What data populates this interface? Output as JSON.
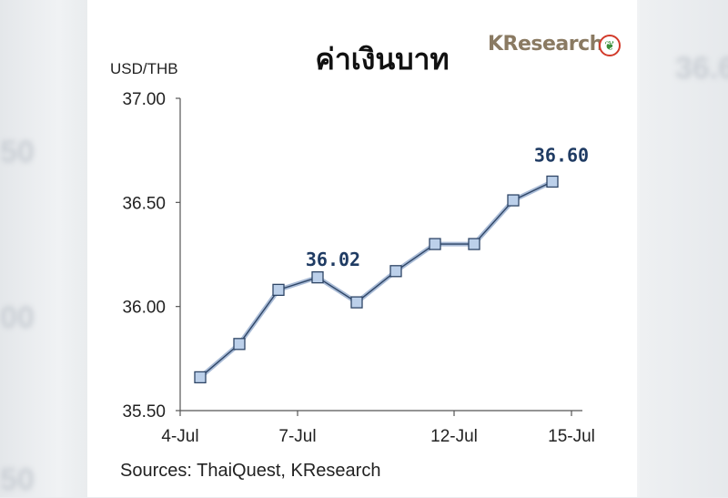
{
  "page": {
    "title": "ค่าเงินบาท",
    "logo_text": "KResearch",
    "unit_label": "USD/THB",
    "source": "Sources: ThaiQuest, KResearch"
  },
  "chart_data": {
    "type": "line",
    "title": "ค่าเงินบาท",
    "ylabel": "USD/THB",
    "xlabel": "",
    "ylim": [
      35.5,
      37.0
    ],
    "yticks": [
      "35.50",
      "36.00",
      "36.50",
      "37.00"
    ],
    "x_tick_labels": [
      "4-Jul",
      "7-Jul",
      "12-Jul",
      "15-Jul"
    ],
    "x_tick_indices": [
      0,
      3,
      7,
      10
    ],
    "values": [
      35.66,
      35.82,
      36.08,
      36.14,
      36.02,
      36.17,
      36.3,
      36.3,
      36.51,
      36.6
    ],
    "data_labels": [
      {
        "index": 4,
        "text": "36.02"
      },
      {
        "index": 9,
        "text": "36.60"
      }
    ],
    "colors": {
      "line": "#6f86a8",
      "marker_fill": "#bcd0ea",
      "marker_stroke": "#2e4566",
      "label": "#1f3b63"
    },
    "grid": false,
    "legend": "none"
  }
}
